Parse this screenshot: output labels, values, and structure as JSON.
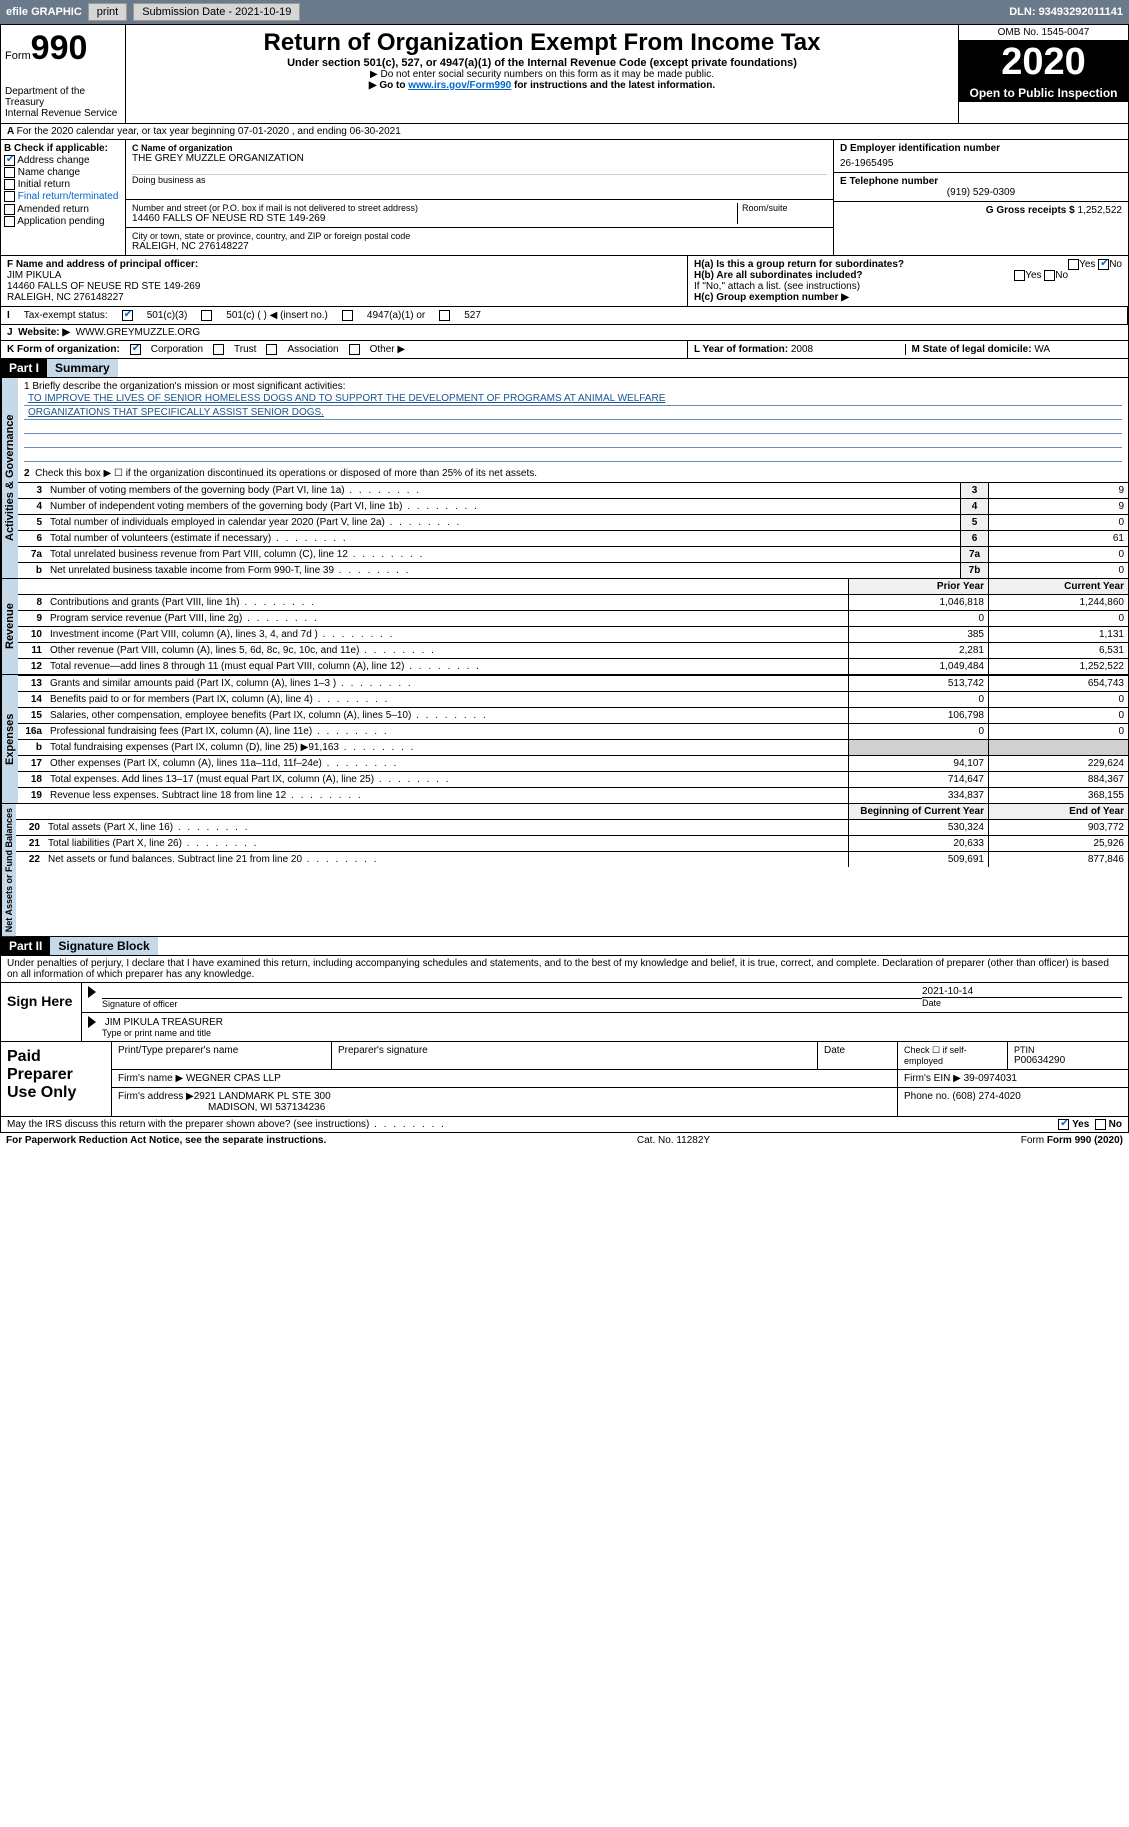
{
  "toolbar": {
    "efile": "efile GRAPHIC",
    "print": "print",
    "subdate_lbl": "Submission Date - ",
    "subdate": "2021-10-19",
    "dln_lbl": "DLN: ",
    "dln": "93493292011141"
  },
  "header": {
    "form_label": "Form",
    "form_num": "990",
    "dept1": "Department of the Treasury",
    "dept2": "Internal Revenue Service",
    "title": "Return of Organization Exempt From Income Tax",
    "subtitle": "Under section 501(c), 527, or 4947(a)(1) of the Internal Revenue Code (except private foundations)",
    "note1": "▶ Do not enter social security numbers on this form as it may be made public.",
    "note2_pre": "▶ Go to ",
    "note2_link": "www.irs.gov/Form990",
    "note2_post": " for instructions and the latest information.",
    "omb": "OMB No. 1545-0047",
    "year": "2020",
    "inspect": "Open to Public Inspection"
  },
  "periodA": "For the 2020 calendar year, or tax year beginning 07-01-2020   , and ending 06-30-2021",
  "boxB": {
    "label": "B Check if applicable:",
    "opts": [
      "Address change",
      "Name change",
      "Initial return",
      "Final return/terminated",
      "Amended return",
      "Application pending"
    ],
    "checked": [
      true,
      false,
      false,
      false,
      false,
      false
    ]
  },
  "boxC": {
    "name_lbl": "C Name of organization",
    "name": "THE GREY MUZZLE ORGANIZATION",
    "dba_lbl": "Doing business as",
    "addr_lbl": "Number and street (or P.O. box if mail is not delivered to street address)",
    "room_lbl": "Room/suite",
    "addr": "14460 FALLS OF NEUSE RD STE 149-269",
    "city_lbl": "City or town, state or province, country, and ZIP or foreign postal code",
    "city": "RALEIGH, NC  276148227"
  },
  "boxD": {
    "lbl": "D Employer identification number",
    "val": "26-1965495"
  },
  "boxE": {
    "lbl": "E Telephone number",
    "val": "(919) 529-0309"
  },
  "boxG": {
    "lbl": "G Gross receipts $ ",
    "val": "1,252,522"
  },
  "boxF": {
    "lbl": "F  Name and address of principal officer:",
    "name": "JIM PIKULA",
    "addr1": "14460 FALLS OF NEUSE RD STE 149-269",
    "addr2": "RALEIGH, NC  276148227"
  },
  "boxH": {
    "ha": "H(a)  Is this a group return for subordinates?",
    "hb": "H(b)  Are all subordinates included?",
    "note": "If \"No,\" attach a list. (see instructions)",
    "hc": "H(c)  Group exemption number ▶",
    "yes": "Yes",
    "no": "No"
  },
  "boxI": {
    "lbl": "Tax-exempt status:",
    "o1": "501(c)(3)",
    "o2": "501(c) (  ) ◀ (insert no.)",
    "o3": "4947(a)(1) or",
    "o4": "527"
  },
  "boxJ": {
    "lbl": "Website: ▶",
    "val": "WWW.GREYMUZZLE.ORG"
  },
  "boxK": {
    "lbl": "K Form of organization:",
    "corp": "Corporation",
    "trust": "Trust",
    "assoc": "Association",
    "other": "Other ▶"
  },
  "boxL": {
    "lbl": "L Year of formation: ",
    "val": "2008"
  },
  "boxM": {
    "lbl": "M State of legal domicile: ",
    "val": "WA"
  },
  "part1": {
    "hdr": "Part I",
    "title": "Summary"
  },
  "mission": {
    "l1": "1   Briefly describe the organization's mission or most significant activities:",
    "l2": "TO IMPROVE THE LIVES OF SENIOR HOMELESS DOGS AND TO SUPPORT THE DEVELOPMENT OF PROGRAMS AT ANIMAL WELFARE",
    "l3": "ORGANIZATIONS THAT SPECIFICALLY ASSIST SENIOR DOGS."
  },
  "gov": {
    "label": "Activities & Governance",
    "l2": "Check this box ▶ ☐  if the organization discontinued its operations or disposed of more than 25% of its net assets.",
    "rows": [
      {
        "n": "3",
        "t": "Number of voting members of the governing body (Part VI, line 1a)",
        "b": "3",
        "v": "9"
      },
      {
        "n": "4",
        "t": "Number of independent voting members of the governing body (Part VI, line 1b)",
        "b": "4",
        "v": "9"
      },
      {
        "n": "5",
        "t": "Total number of individuals employed in calendar year 2020 (Part V, line 2a)",
        "b": "5",
        "v": "0"
      },
      {
        "n": "6",
        "t": "Total number of volunteers (estimate if necessary)",
        "b": "6",
        "v": "61"
      },
      {
        "n": "7a",
        "t": "Total unrelated business revenue from Part VIII, column (C), line 12",
        "b": "7a",
        "v": "0"
      },
      {
        "n": "b",
        "t": "Net unrelated business taxable income from Form 990-T, line 39",
        "b": "7b",
        "v": "0"
      }
    ]
  },
  "cols": {
    "prior": "Prior Year",
    "current": "Current Year",
    "beg": "Beginning of Current Year",
    "end": "End of Year"
  },
  "rev": {
    "label": "Revenue",
    "rows": [
      {
        "n": "8",
        "t": "Contributions and grants (Part VIII, line 1h)",
        "p": "1,046,818",
        "c": "1,244,860"
      },
      {
        "n": "9",
        "t": "Program service revenue (Part VIII, line 2g)",
        "p": "0",
        "c": "0"
      },
      {
        "n": "10",
        "t": "Investment income (Part VIII, column (A), lines 3, 4, and 7d )",
        "p": "385",
        "c": "1,131"
      },
      {
        "n": "11",
        "t": "Other revenue (Part VIII, column (A), lines 5, 6d, 8c, 9c, 10c, and 11e)",
        "p": "2,281",
        "c": "6,531"
      },
      {
        "n": "12",
        "t": "Total revenue—add lines 8 through 11 (must equal Part VIII, column (A), line 12)",
        "p": "1,049,484",
        "c": "1,252,522"
      }
    ]
  },
  "exp": {
    "label": "Expenses",
    "rows": [
      {
        "n": "13",
        "t": "Grants and similar amounts paid (Part IX, column (A), lines 1–3 )",
        "p": "513,742",
        "c": "654,743"
      },
      {
        "n": "14",
        "t": "Benefits paid to or for members (Part IX, column (A), line 4)",
        "p": "0",
        "c": "0"
      },
      {
        "n": "15",
        "t": "Salaries, other compensation, employee benefits (Part IX, column (A), lines 5–10)",
        "p": "106,798",
        "c": "0"
      },
      {
        "n": "16a",
        "t": "Professional fundraising fees (Part IX, column (A), line 11e)",
        "p": "0",
        "c": "0"
      },
      {
        "n": "b",
        "t": "Total fundraising expenses (Part IX, column (D), line 25) ▶91,163",
        "p": "",
        "c": "",
        "grey": true
      },
      {
        "n": "17",
        "t": "Other expenses (Part IX, column (A), lines 11a–11d, 11f–24e)",
        "p": "94,107",
        "c": "229,624"
      },
      {
        "n": "18",
        "t": "Total expenses. Add lines 13–17 (must equal Part IX, column (A), line 25)",
        "p": "714,647",
        "c": "884,367"
      },
      {
        "n": "19",
        "t": "Revenue less expenses. Subtract line 18 from line 12",
        "p": "334,837",
        "c": "368,155"
      }
    ]
  },
  "net": {
    "label": "Net Assets or Fund Balances",
    "rows": [
      {
        "n": "20",
        "t": "Total assets (Part X, line 16)",
        "p": "530,324",
        "c": "903,772"
      },
      {
        "n": "21",
        "t": "Total liabilities (Part X, line 26)",
        "p": "20,633",
        "c": "25,926"
      },
      {
        "n": "22",
        "t": "Net assets or fund balances. Subtract line 21 from line 20",
        "p": "509,691",
        "c": "877,846"
      }
    ]
  },
  "part2": {
    "hdr": "Part II",
    "title": "Signature Block"
  },
  "penalty": "Under penalties of perjury, I declare that I have examined this return, including accompanying schedules and statements, and to the best of my knowledge and belief, it is true, correct, and complete. Declaration of preparer (other than officer) is based on all information of which preparer has any knowledge.",
  "sign": {
    "here": "Sign Here",
    "sig_lbl": "Signature of officer",
    "date_lbl": "Date",
    "date": "2021-10-14",
    "name": "JIM PIKULA  TREASURER",
    "name_lbl": "Type or print name and title"
  },
  "prep": {
    "title": "Paid Preparer Use Only",
    "h1": "Print/Type preparer's name",
    "h2": "Preparer's signature",
    "h3": "Date",
    "h4": "Check ☐ if self-employed",
    "h5_lbl": "PTIN",
    "h5": "P00634290",
    "firm_lbl": "Firm's name   ▶ ",
    "firm": "WEGNER CPAS LLP",
    "ein_lbl": "Firm's EIN ▶ ",
    "ein": "39-0974031",
    "addr_lbl": "Firm's address ▶",
    "addr1": "2921 LANDMARK PL STE 300",
    "addr2": "MADISON, WI  537134236",
    "phone_lbl": "Phone no. ",
    "phone": "(608) 274-4020"
  },
  "discuss": {
    "t": "May the IRS discuss this return with the preparer shown above? (see instructions)",
    "yes": "Yes",
    "no": "No"
  },
  "footer": {
    "l": "For Paperwork Reduction Act Notice, see the separate instructions.",
    "m": "Cat. No. 11282Y",
    "r": "Form 990 (2020)"
  }
}
